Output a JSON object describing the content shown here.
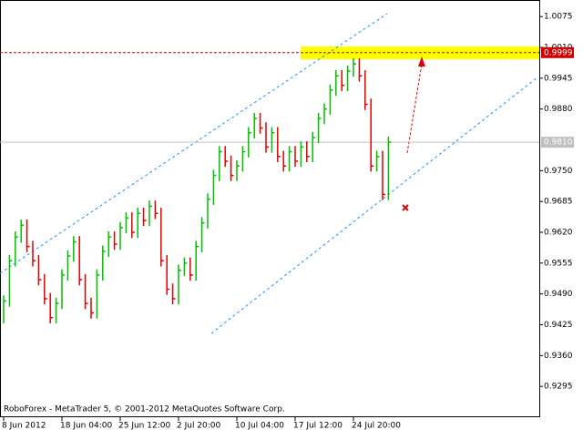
{
  "chart_data": {
    "type": "ohlc",
    "footer": "RoboForex - MetaTrader 5, © 2001-2012 MetaQuotes Software Corp.",
    "categories": [
      "8 Jun 2012",
      null,
      null,
      null,
      null,
      null,
      null,
      null,
      null,
      null,
      "18 Jun 04:00",
      null,
      null,
      null,
      null,
      null,
      null,
      null,
      null,
      null,
      "25 Jun 12:00",
      null,
      null,
      null,
      null,
      null,
      null,
      null,
      null,
      null,
      "2 Jul 20:00",
      null,
      null,
      null,
      null,
      null,
      null,
      null,
      null,
      null,
      "10 Jul 04:00",
      null,
      null,
      null,
      null,
      null,
      null,
      null,
      null,
      null,
      "17 Jul 12:00",
      null,
      null,
      null,
      null,
      null,
      null,
      null,
      null,
      null,
      "24 Jul 20:00",
      null,
      null,
      null,
      null,
      null,
      null
    ],
    "high": [
      0.9487,
      0.9572,
      0.9622,
      0.9647,
      0.9647,
      0.9602,
      0.9572,
      0.9532,
      0.9492,
      0.9482,
      0.9542,
      0.9582,
      0.9612,
      0.9612,
      0.9532,
      0.9482,
      0.9542,
      0.9592,
      0.9622,
      0.9622,
      0.9642,
      0.9662,
      0.9662,
      0.9672,
      0.9672,
      0.9687,
      0.9687,
      0.9672,
      0.9572,
      0.9512,
      0.9552,
      0.9567,
      0.9567,
      0.9602,
      0.9652,
      0.9702,
      0.9752,
      0.9802,
      0.9802,
      0.9782,
      0.9772,
      0.9802,
      0.9842,
      0.9872,
      0.9872,
      0.9852,
      0.9842,
      0.9842,
      0.9792,
      0.9802,
      0.9802,
      0.9812,
      0.9812,
      0.9832,
      0.9872,
      0.9892,
      0.9932,
      0.9962,
      0.9962,
      0.9972,
      0.9987,
      0.9987,
      0.9962,
      0.9902,
      0.9792,
      0.9792,
      0.9822
    ],
    "low": [
      0.9428,
      0.9463,
      0.9548,
      0.9598,
      0.9578,
      0.9548,
      0.9508,
      0.9468,
      0.9428,
      0.9428,
      0.9458,
      0.9518,
      0.9558,
      0.9508,
      0.9458,
      0.9438,
      0.9438,
      0.9518,
      0.9568,
      0.9583,
      0.9583,
      0.9618,
      0.9608,
      0.9608,
      0.9633,
      0.9633,
      0.9648,
      0.9548,
      0.9488,
      0.9468,
      0.9468,
      0.9528,
      0.9518,
      0.9518,
      0.9578,
      0.9628,
      0.9678,
      0.9728,
      0.9758,
      0.9728,
      0.9728,
      0.9748,
      0.9778,
      0.9818,
      0.9828,
      0.9788,
      0.9788,
      0.9768,
      0.9748,
      0.9748,
      0.9758,
      0.9758,
      0.9768,
      0.9768,
      0.9808,
      0.9848,
      0.9868,
      0.9908,
      0.9918,
      0.9918,
      0.9948,
      0.9938,
      0.9878,
      0.9748,
      0.9748,
      0.9688,
      0.9688
    ],
    "close": [
      0.9475,
      0.956,
      0.961,
      0.9635,
      0.959,
      0.956,
      0.952,
      0.948,
      0.944,
      0.947,
      0.953,
      0.957,
      0.96,
      0.952,
      0.947,
      0.945,
      0.953,
      0.958,
      0.961,
      0.9595,
      0.963,
      0.965,
      0.962,
      0.966,
      0.9645,
      0.9675,
      0.966,
      0.956,
      0.95,
      0.948,
      0.954,
      0.9555,
      0.953,
      0.959,
      0.964,
      0.969,
      0.974,
      0.979,
      0.977,
      0.974,
      0.976,
      0.979,
      0.983,
      0.986,
      0.984,
      0.98,
      0.983,
      0.978,
      0.976,
      0.979,
      0.977,
      0.98,
      0.978,
      0.982,
      0.986,
      0.988,
      0.992,
      0.995,
      0.993,
      0.996,
      0.9975,
      0.995,
      0.989,
      0.976,
      0.978,
      0.97,
      0.981
    ],
    "up_color": "#00c000",
    "down_color": "#e00000",
    "ylim": [
      0.923,
      1.011
    ],
    "yticks": [
      1.0075,
      {
        "value": 1.001,
        "label": "1.0010"
      },
      0.9945,
      {
        "value": 0.988,
        "label": "0.9880"
      },
      {
        "value": 0.975,
        "label": "0.9750"
      },
      0.9685,
      {
        "value": 0.962,
        "label": "0.9620"
      },
      0.9555,
      {
        "value": 0.949,
        "label": "0.9490"
      },
      0.9425,
      {
        "value": 0.936,
        "label": "0.9360"
      },
      0.9295
    ],
    "price_lines": [
      {
        "value": 0.9999,
        "color": "#cc0000"
      },
      {
        "value": 0.981,
        "label": "0.9810",
        "color": "#c0c0c0"
      }
    ],
    "target_zone": {
      "range": [
        0.9985,
        1.0012
      ],
      "color": "#ffff00"
    }
  }
}
